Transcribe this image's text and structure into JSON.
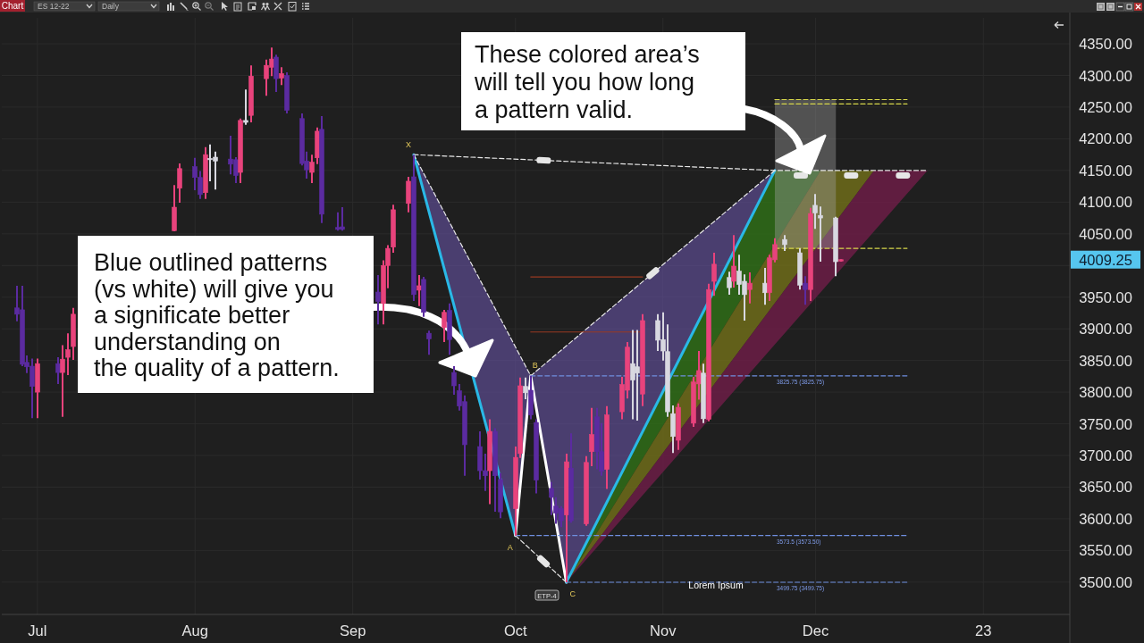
{
  "chart_data": {
    "type": "candlestick",
    "x": [
      "2022-06-27",
      "2022-06-28",
      "2022-06-29",
      "2022-06-30",
      "2022-07-01",
      "2022-07-05",
      "2022-07-06",
      "2022-07-07",
      "2022-07-08",
      "2022-07-28",
      "2022-07-29",
      "2022-08-01",
      "2022-08-02",
      "2022-08-03",
      "2022-08-04",
      "2022-08-05",
      "2022-08-08",
      "2022-08-09",
      "2022-08-10",
      "2022-08-11",
      "2022-08-12",
      "2022-08-15",
      "2022-08-16",
      "2022-08-17",
      "2022-08-18",
      "2022-08-19",
      "2022-08-22",
      "2022-08-23",
      "2022-08-24",
      "2022-08-25",
      "2022-08-26",
      "2022-08-29",
      "2022-08-30",
      "2022-09-06",
      "2022-09-07",
      "2022-09-08",
      "2022-09-09",
      "2022-09-12",
      "2022-09-13",
      "2022-09-14",
      "2022-09-15",
      "2022-09-16",
      "2022-09-19",
      "2022-09-20",
      "2022-09-21",
      "2022-09-22",
      "2022-09-23",
      "2022-09-26",
      "2022-09-27",
      "2022-09-28",
      "2022-09-29",
      "2022-09-30",
      "2022-10-03",
      "2022-10-04",
      "2022-10-05",
      "2022-10-06",
      "2022-10-07",
      "2022-10-10",
      "2022-10-11",
      "2022-10-12",
      "2022-10-13",
      "2022-10-14",
      "2022-10-17",
      "2022-10-18",
      "2022-10-19",
      "2022-10-20",
      "2022-10-21",
      "2022-10-24",
      "2022-10-25",
      "2022-10-26",
      "2022-10-27",
      "2022-10-28",
      "2022-10-31",
      "2022-11-01",
      "2022-11-02",
      "2022-11-03",
      "2022-11-04",
      "2022-11-07",
      "2022-11-08",
      "2022-11-09",
      "2022-11-10",
      "2022-11-11",
      "2022-11-14",
      "2022-11-15",
      "2022-11-16",
      "2022-11-17",
      "2022-11-18",
      "2022-11-21",
      "2022-11-22",
      "2022-11-23",
      "2022-11-25",
      "2022-11-28",
      "2022-11-29",
      "2022-11-30",
      "2022-12-01",
      "2022-12-02",
      "2022-12-05",
      "2022-12-06"
    ],
    "ohlc": [
      [
        3933,
        3968,
        3912,
        3923
      ],
      [
        3930,
        3968,
        3841,
        3844
      ],
      [
        3847,
        3858,
        3830,
        3840
      ],
      [
        3841,
        3853,
        3759,
        3809
      ],
      [
        3800,
        3853,
        3759,
        3845
      ],
      [
        3845,
        3855,
        3813,
        3831
      ],
      [
        3831,
        3874,
        3761,
        3852
      ],
      [
        3855,
        3893,
        3827,
        3867
      ],
      [
        3872,
        3933,
        3851,
        3923
      ],
      [
        4055,
        4127,
        4054,
        4092
      ],
      [
        4122,
        4161,
        4099,
        4153
      ],
      [
        4156,
        4170,
        4119,
        4139
      ],
      [
        4139,
        4149,
        4105,
        4112
      ],
      [
        4115,
        4187,
        4105,
        4175
      ],
      [
        4169,
        4191,
        4133,
        4167
      ],
      [
        4171,
        4180,
        4120,
        4165
      ],
      [
        4168,
        4205,
        4144,
        4160
      ],
      [
        4167,
        4171,
        4130,
        4142
      ],
      [
        4147,
        4232,
        4130,
        4229
      ],
      [
        4229,
        4278,
        4222,
        4226
      ],
      [
        4237,
        4316,
        4226,
        4299
      ],
      [
        4295,
        4325,
        4268,
        4316
      ],
      [
        4313,
        4344,
        4299,
        4326
      ],
      [
        4329,
        4333,
        4274,
        4295
      ],
      [
        4296,
        4313,
        4285,
        4303
      ],
      [
        4300,
        4305,
        4240,
        4245
      ],
      [
        4232,
        4240,
        4158,
        4161
      ],
      [
        4165,
        4180,
        4137,
        4151
      ],
      [
        4147,
        4175,
        4130,
        4163
      ],
      [
        4170,
        4218,
        4160,
        4212
      ],
      [
        4215,
        4236,
        4067,
        4081
      ],
      [
        4060,
        4084,
        4055,
        4057
      ],
      [
        4061,
        4092,
        4055,
        4057
      ],
      [
        3958,
        3985,
        3907,
        3943
      ],
      [
        3940,
        4008,
        3907,
        4000
      ],
      [
        4000,
        4032,
        3964,
        4027
      ],
      [
        4029,
        4096,
        4020,
        4088
      ],
      [
        4098,
        4140,
        4084,
        4133
      ],
      [
        4140,
        4175,
        3944,
        3954
      ],
      [
        3961,
        3985,
        3936,
        3968
      ],
      [
        3978,
        3982,
        3919,
        3926
      ],
      [
        3893,
        3897,
        3859,
        3884
      ],
      [
        3902,
        3930,
        3879,
        3926
      ],
      [
        3929,
        3940,
        3859,
        3883
      ],
      [
        3831,
        3841,
        3796,
        3810
      ],
      [
        3802,
        3813,
        3771,
        3778
      ],
      [
        3785,
        3795,
        3668,
        3717
      ],
      [
        3714,
        3738,
        3662,
        3676
      ],
      [
        3676,
        3703,
        3644,
        3668
      ],
      [
        3676,
        3757,
        3623,
        3738
      ],
      [
        3738,
        3743,
        3611,
        3668
      ],
      [
        3662,
        3672,
        3601,
        3611
      ],
      [
        3616,
        3714,
        3573.5,
        3697
      ],
      [
        3703,
        3823,
        3696,
        3810
      ],
      [
        3809,
        3823,
        3789,
        3799
      ],
      [
        3803,
        3825.75,
        3757,
        3764
      ],
      [
        3752,
        3757,
        3640,
        3661
      ],
      [
        3648,
        3658,
        3606,
        3634
      ],
      [
        3620,
        3634,
        3592,
        3609
      ],
      [
        3616,
        3620,
        3587,
        3597
      ],
      [
        3606,
        3703,
        3499.75,
        3690
      ],
      [
        3680,
        3735,
        3594,
        3597
      ],
      [
        3592,
        3699,
        3589,
        3689
      ],
      [
        3706,
        3775,
        3683,
        3733
      ],
      [
        3761,
        3775,
        3678,
        3706
      ],
      [
        3706,
        3751,
        3668,
        3675
      ],
      [
        3678,
        3778,
        3647,
        3764
      ],
      [
        3769,
        3824,
        3757,
        3812
      ],
      [
        3803,
        3879,
        3790,
        3871
      ],
      [
        3845,
        3898,
        3757,
        3819
      ],
      [
        3840,
        3898,
        3755,
        3830
      ],
      [
        3797,
        3923,
        3778,
        3913
      ],
      [
        3913,
        3923,
        3865,
        3882
      ],
      [
        3883,
        3926,
        3850,
        3865
      ],
      [
        3864,
        3907,
        3761,
        3769
      ],
      [
        3766,
        3779,
        3704,
        3730
      ],
      [
        3724,
        3782,
        3709,
        3776
      ],
      [
        3751,
        3824,
        3745,
        3816
      ],
      [
        3813,
        3865,
        3788,
        3834
      ],
      [
        3830,
        3845,
        3751,
        3758
      ],
      [
        3757,
        3971,
        3754,
        3962
      ],
      [
        3975,
        4020,
        3952,
        4002
      ],
      [
        3981,
        3990,
        3954,
        3965
      ],
      [
        3975,
        4048,
        3965,
        3999
      ],
      [
        3991,
        4017,
        3954,
        3970
      ],
      [
        3975,
        3986,
        3913,
        3954
      ],
      [
        3962,
        3989,
        3940,
        3972
      ],
      [
        3972,
        3996,
        3938,
        3957
      ],
      [
        3957,
        4017,
        3944,
        4012
      ],
      [
        4009,
        4043,
        4005,
        4033
      ],
      [
        4041,
        4048,
        4023,
        4033
      ],
      [
        4020,
        4027,
        3962,
        3969
      ],
      [
        3972,
        3983,
        3938,
        3962
      ],
      [
        3962,
        4091,
        3944,
        4082
      ],
      [
        4083,
        4113,
        4058,
        4095
      ],
      [
        4079,
        4093,
        4006,
        4075
      ],
      [
        4075,
        4077,
        3983,
        4006
      ],
      [
        4007,
        4010,
        4006,
        4009.25
      ]
    ],
    "colors": [
      "#5b2ba0",
      "#5b2ba0",
      "#5b2ba0",
      "#5b2ba0",
      "#e8437c",
      "#5b2ba0",
      "#e8437c",
      "#e8437c",
      "#e8437c",
      "#e8437c",
      "#e8437c",
      "#5b2ba0",
      "#5b2ba0",
      "#e8437c",
      "#d8d8e0",
      "#d8d8e0",
      "#5b2ba0",
      "#5b2ba0",
      "#e8437c",
      "#d8d8e0",
      "#e8437c",
      "#e8437c",
      "#e8437c",
      "#5b2ba0",
      "#e8437c",
      "#5b2ba0",
      "#5b2ba0",
      "#5b2ba0",
      "#e8437c",
      "#e8437c",
      "#5b2ba0",
      "#5b2ba0",
      "#5b2ba0",
      "#5b2ba0",
      "#e8437c",
      "#e8437c",
      "#e8437c",
      "#e8437c",
      "#5b2ba0",
      "#e8437c",
      "#5b2ba0",
      "#5b2ba0",
      "#e8437c",
      "#5b2ba0",
      "#5b2ba0",
      "#5b2ba0",
      "#5b2ba0",
      "#5b2ba0",
      "#5b2ba0",
      "#e8437c",
      "#5b2ba0",
      "#5b2ba0",
      "#e8437c",
      "#e8437c",
      "#d8d8e0",
      "#5b2ba0",
      "#5b2ba0",
      "#5b2ba0",
      "#5b2ba0",
      "#5b2ba0",
      "#e8437c",
      "#5b2ba0",
      "#e8437c",
      "#e8437c",
      "#5b2ba0",
      "#5b2ba0",
      "#e8437c",
      "#e8437c",
      "#e8437c",
      "#d8d8e0",
      "#d8d8e0",
      "#e8437c",
      "#d8d8e0",
      "#d8d8e0",
      "#d8d8e0",
      "#d8d8e0",
      "#e8437c",
      "#e8437c",
      "#e8437c",
      "#d8d8e0",
      "#e8437c",
      "#e8437c",
      "#d8d8e0",
      "#e8437c",
      "#d8d8e0",
      "#d8d8e0",
      "#e8437c",
      "#d8d8e0",
      "#e8437c",
      "#e8437c",
      "#d8d8e0",
      "#d8d8e0",
      "#5b2ba0",
      "#e8437c",
      "#d8d8e0",
      "#d8d8e0",
      "#d8d8e0",
      "#e8437c"
    ],
    "xlim": [
      "2022-06-24",
      "2023-01-20"
    ],
    "xticks": [
      {
        "value": "2022-07-01",
        "label": "Jul"
      },
      {
        "value": "2022-08-01",
        "label": "Aug"
      },
      {
        "value": "2022-09-01",
        "label": "Sep"
      },
      {
        "value": "2022-10-03",
        "label": "Oct"
      },
      {
        "value": "2022-11-01",
        "label": "Nov"
      },
      {
        "value": "2022-12-01",
        "label": "Dec"
      },
      {
        "value": "2023-01-03",
        "label": "23"
      }
    ],
    "ylim": [
      3449,
      4391
    ],
    "yticks": [
      {
        "value": 3500,
        "label": "3500.00"
      },
      {
        "value": 3550,
        "label": "3550.00"
      },
      {
        "value": 3600,
        "label": "3600.00"
      },
      {
        "value": 3650,
        "label": "3650.00"
      },
      {
        "value": 3700,
        "label": "3700.00"
      },
      {
        "value": 3750,
        "label": "3750.00"
      },
      {
        "value": 3800,
        "label": "3800.00"
      },
      {
        "value": 3850,
        "label": "3850.00"
      },
      {
        "value": 3900,
        "label": "3900.00"
      },
      {
        "value": 3950,
        "label": "3950.00"
      },
      {
        "value": 4000,
        "label": null
      },
      {
        "value": 4050,
        "label": "4050.00"
      },
      {
        "value": 4100,
        "label": "4100.00"
      },
      {
        "value": 4150,
        "label": "4150.00"
      },
      {
        "value": 4200,
        "label": "4200.00"
      },
      {
        "value": 4250,
        "label": "4250.00"
      },
      {
        "value": 4300,
        "label": "4300.00"
      },
      {
        "value": 4350,
        "label": "4350.00"
      }
    ],
    "grid": true,
    "series": [
      {
        "type": "line",
        "color": "#2ab8e6",
        "x": [
          "2022-09-13",
          "2022-10-03"
        ],
        "values": [
          4175,
          3573.5
        ]
      },
      {
        "type": "line",
        "color": "#ffffff",
        "x": [
          "2022-10-03",
          "2022-10-06",
          "2022-10-13"
        ],
        "values": [
          3573.5,
          3825.75,
          3499.75
        ]
      },
      {
        "type": "line",
        "color": "#2ab8e6",
        "x": [
          "2022-10-13",
          "2022-11-23"
        ],
        "values": [
          3499.75,
          4150
        ]
      },
      {
        "type": "line",
        "color": "#e8e8e8",
        "line_style": "dashed",
        "x": [
          "2022-09-13",
          "2022-11-23",
          "2022-12-23"
        ],
        "values": [
          4175,
          4150,
          4150
        ]
      },
      {
        "type": "line",
        "color": "#e8e8e8",
        "line_style": "dashed",
        "x": [
          "2022-09-13",
          "2022-10-06",
          "2022-11-23"
        ],
        "values": [
          4175,
          3825.75,
          4150
        ]
      },
      {
        "type": "line",
        "color": "#e8e8e8",
        "line_style": "dashed",
        "x": [
          "2022-10-03",
          "2022-10-13"
        ],
        "values": [
          3573.5,
          3499.75
        ]
      },
      {
        "type": "line",
        "color": "#6f8fe0",
        "line_style": "dashed",
        "x": [
          "2022-10-06",
          "2022-12-19"
        ],
        "values": [
          3825.75,
          3825.75
        ]
      },
      {
        "type": "line",
        "color": "#6f8fe0",
        "line_style": "dashed",
        "x": [
          "2022-10-03",
          "2022-12-19"
        ],
        "values": [
          3573.5,
          3573.5
        ]
      },
      {
        "type": "line",
        "color": "#6f8fe0",
        "line_style": "dashed",
        "x": [
          "2022-10-13",
          "2022-12-19"
        ],
        "values": [
          3499.75,
          3499.75
        ]
      },
      {
        "type": "line",
        "color": "#d6d64a",
        "line_style": "dashed",
        "x": [
          "2022-11-23",
          "2022-12-19"
        ],
        "values": [
          4027,
          4027
        ]
      },
      {
        "type": "line",
        "color": "#d6d64a",
        "line_style": "dashed",
        "x": [
          "2022-11-23",
          "2022-12-19"
        ],
        "values": [
          4255,
          4255
        ]
      },
      {
        "type": "line",
        "color": "#d6d64a",
        "line_style": "dashed",
        "x": [
          "2022-11-23",
          "2022-12-19"
        ],
        "values": [
          4262,
          4262
        ]
      },
      {
        "type": "line",
        "color": "#9a3a22",
        "x": [
          "2022-10-06",
          "2022-10-28"
        ],
        "values": [
          3982,
          3982
        ]
      },
      {
        "type": "line",
        "color": "#9a3a22",
        "x": [
          "2022-10-06",
          "2022-10-28"
        ],
        "values": [
          3895,
          3895
        ]
      }
    ],
    "annotations": [
      "Chart",
      "ES 12-22",
      "Daily",
      "These colored area’s\nwill tell you how long\na pattern valid.",
      "Blue outlined patterns\n(vs white) will give you\na significate better\nunderstanding on\nthe quality of a pattern.",
      "Lorem Ipsum",
      "ETP-4",
      "4009.25",
      {
        "text": "X",
        "x": "2022-09-13",
        "y": 4175
      },
      {
        "text": "A",
        "x": "2022-10-03",
        "y": 3573.5
      },
      {
        "text": "B",
        "x": "2022-10-06",
        "y": 3825.75
      },
      {
        "text": "C",
        "x": "2022-10-13",
        "y": 3499.75
      },
      {
        "text": "3825.75 (3825.75)",
        "x": "2022-11-23",
        "y": 3825.75
      },
      {
        "text": "3573.5 (3573.50)",
        "x": "2022-11-23",
        "y": 3573.5
      },
      {
        "text": "3499.75 (3499.75)",
        "x": "2022-11-23",
        "y": 3499.75
      }
    ]
  }
}
